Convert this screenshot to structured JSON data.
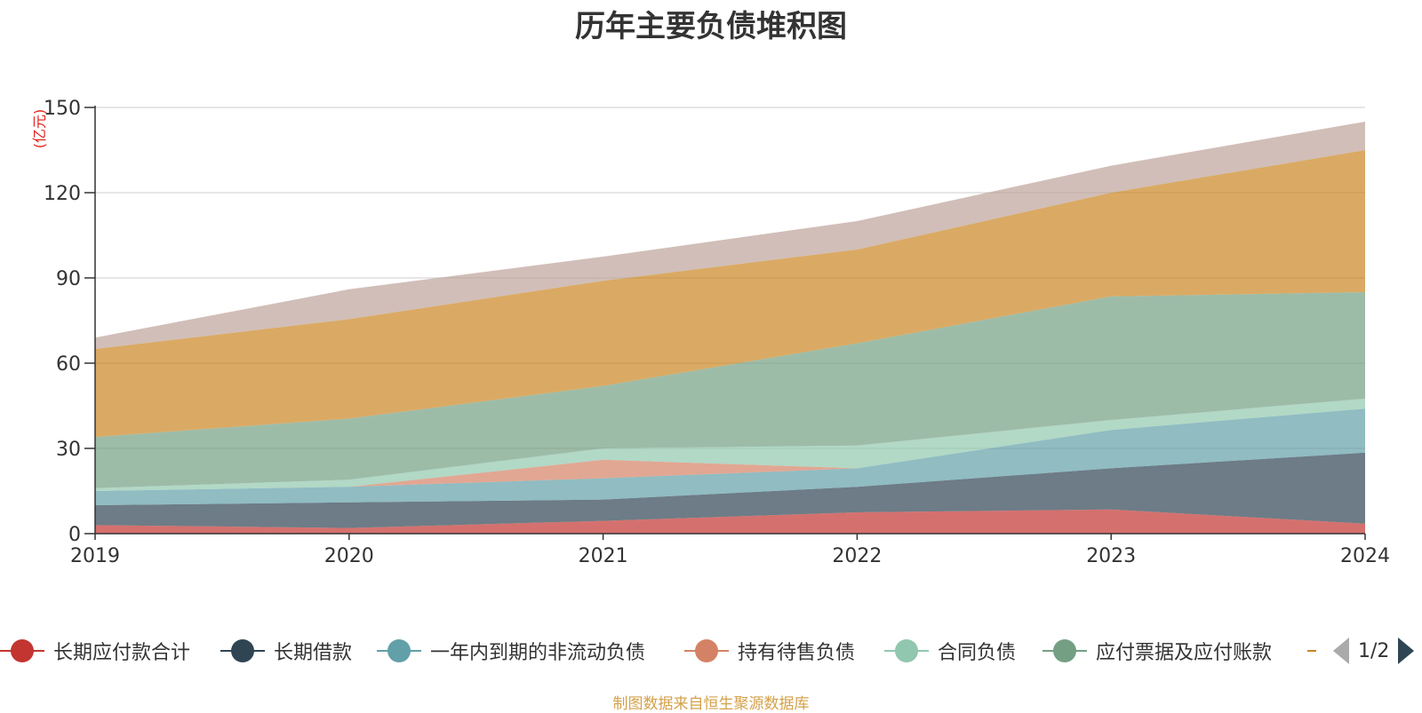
{
  "chart_data": {
    "type": "area",
    "stacked": true,
    "title": "历年主要负债堆积图",
    "ylabel": "(亿元)",
    "ylim": [
      0,
      150
    ],
    "yticks": [
      "0",
      "30",
      "60",
      "90",
      "120",
      "150"
    ],
    "categories": [
      "2019",
      "2020",
      "2021",
      "2022",
      "2023",
      "2024"
    ],
    "grid": true,
    "legend_position": "bottom",
    "series": [
      {
        "name": "长期应付款合计",
        "color": "#c23531",
        "values": [
          3.0,
          2.0,
          4.5,
          7.5,
          8.5,
          3.5
        ]
      },
      {
        "name": "长期借款",
        "color": "#2f4554",
        "values": [
          7.0,
          9.0,
          7.5,
          9.0,
          14.5,
          25.0
        ]
      },
      {
        "name": "一年内到期的非流动负债",
        "color": "#61a0a8",
        "values": [
          5.0,
          5.5,
          7.5,
          6.5,
          13.5,
          15.5
        ]
      },
      {
        "name": "持有待售负债",
        "color": "#d48265",
        "values": [
          0,
          0,
          6.5,
          0,
          0,
          0
        ]
      },
      {
        "name": "合同负债",
        "color": "#91c7ae",
        "values": [
          1.0,
          2.5,
          4.0,
          8.0,
          3.5,
          3.5
        ]
      },
      {
        "name": "应付票据及应付账款",
        "color": "#749f83",
        "values": [
          18.0,
          21.5,
          22.0,
          36.0,
          43.5,
          37.5
        ]
      },
      {
        "name": "",
        "color": "#ca8622",
        "values": [
          31.0,
          35.0,
          37.0,
          33.0,
          36.5,
          50.0
        ]
      },
      {
        "name": "",
        "color": "#bda29a",
        "values": [
          4.0,
          10.5,
          8.5,
          10.0,
          9.5,
          10.0
        ]
      }
    ]
  },
  "legend": {
    "pager_text": "1/2",
    "partial_color": "#ca8622"
  },
  "source": "制图数据来自恒生聚源数据库"
}
